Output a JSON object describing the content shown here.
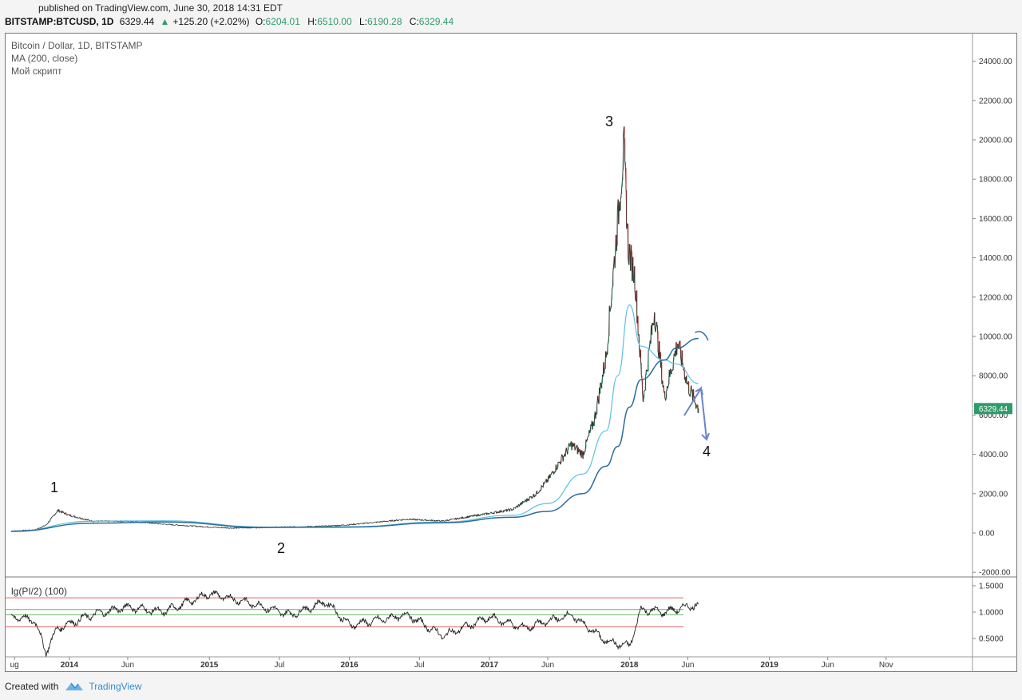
{
  "header": {
    "published": "published on TradingView.com, June 30, 2018 14:31 EDT",
    "symbol": "BITSTAMP:BTCUSD, 1D",
    "last": "6329.44",
    "change_arrow": "▲",
    "change": "+125.20 (+2.02%)",
    "o_label": "O:",
    "o_value": "6204.01",
    "h_label": "H:",
    "h_value": "6510.00",
    "l_label": "L:",
    "l_value": "6190.28",
    "c_label": "C:",
    "c_value": "6329.44"
  },
  "legend": {
    "title": "Bitcoin / Dollar, 1D, BITSTAMP",
    "ma": "MA (200, close)",
    "script": "Мой скрипт",
    "indicator": "lg(PI/2) (100)"
  },
  "footer": {
    "created_with": "Created with",
    "brand": "TradingView"
  },
  "colors": {
    "up": "#2e9c6a",
    "down": "#c0392b",
    "ma_dark": "#2b6c9a",
    "ma_light": "#5bc0de",
    "arrow": "#6a86c8",
    "red_line": "#e36464",
    "green_line": "#5cb85c",
    "price_tag": "#2e9c6a"
  },
  "chart_data": [
    {
      "type": "line",
      "title": "Bitcoin / Dollar, 1D, BITSTAMP",
      "ylim": [
        -2000,
        25000
      ],
      "y_ticks": [
        "24000.00",
        "22000.00",
        "20000.00",
        "18000.00",
        "16000.00",
        "14000.00",
        "12000.00",
        "10000.00",
        "8000.00",
        "6000.00",
        "4000.00",
        "2000.00",
        "0.00",
        "-2000.00"
      ],
      "x_ticks": [
        "ug",
        "2014",
        "Jun",
        "2015",
        "Jul",
        "2016",
        "Jul",
        "2017",
        "Jun",
        "2018",
        "Jun",
        "2019",
        "Jun",
        "Nov"
      ],
      "current_price": "6329.44",
      "annotations": [
        "1",
        "2",
        "3",
        "4"
      ],
      "series": [
        {
          "name": "BTCUSD",
          "x": [
            "2013-08",
            "2013-10",
            "2013-11",
            "2013-12",
            "2014-01",
            "2014-03",
            "2014-06",
            "2014-09",
            "2015-01",
            "2015-03",
            "2015-07",
            "2015-11",
            "2016-01",
            "2016-06",
            "2016-09",
            "2017-01",
            "2017-03",
            "2017-05",
            "2017-06",
            "2017-08",
            "2017-09",
            "2017-10",
            "2017-11",
            "2017-12-17",
            "2017-12-28",
            "2018-01-15",
            "2018-02-06",
            "2018-03-05",
            "2018-04-01",
            "2018-05-05",
            "2018-06-01",
            "2018-06-29"
          ],
          "values": [
            100,
            150,
            400,
            1150,
            900,
            600,
            600,
            450,
            300,
            250,
            300,
            350,
            420,
            700,
            610,
            1000,
            1200,
            2000,
            2700,
            4500,
            4000,
            5800,
            9000,
            19600,
            14500,
            13000,
            6800,
            11300,
            6900,
            9700,
            7500,
            6329
          ]
        },
        {
          "name": "MA (200, close)",
          "x": [
            "2013-08",
            "2014-03",
            "2014-09",
            "2015-06",
            "2016-01",
            "2016-09",
            "2017-03",
            "2017-06",
            "2017-09",
            "2017-11",
            "2017-12",
            "2018-01",
            "2018-02",
            "2018-04",
            "2018-05",
            "2018-06-29"
          ],
          "values": [
            80,
            500,
            560,
            280,
            300,
            520,
            800,
            1100,
            2000,
            3400,
            4400,
            6400,
            7800,
            8800,
            9400,
            9900
          ]
        }
      ]
    },
    {
      "type": "line",
      "title": "lg(PI/2) (100)",
      "ylim": [
        0.2,
        1.6
      ],
      "y_ticks": [
        "1.5000",
        "1.0000",
        "0.5000"
      ],
      "reference_lines": [
        1.27,
        1.05,
        0.95,
        0.72
      ],
      "series": [
        {
          "name": "lg(PI/2) (100)",
          "x": [
            "2013-08",
            "2013-10",
            "2013-11",
            "2013-12",
            "2014-03",
            "2014-06",
            "2014-09",
            "2015-01",
            "2015-04",
            "2015-08",
            "2015-11",
            "2016-01",
            "2016-06",
            "2016-09",
            "2017-01",
            "2017-04",
            "2017-08",
            "2017-11",
            "2018-01",
            "2018-02",
            "2018-04",
            "2018-06-29"
          ],
          "values": [
            0.92,
            0.85,
            0.25,
            0.7,
            0.95,
            1.1,
            1.0,
            1.35,
            1.2,
            0.95,
            1.2,
            0.75,
            0.95,
            0.55,
            0.9,
            0.7,
            0.95,
            0.45,
            0.35,
            1.05,
            1.0,
            1.15
          ]
        }
      ]
    }
  ]
}
